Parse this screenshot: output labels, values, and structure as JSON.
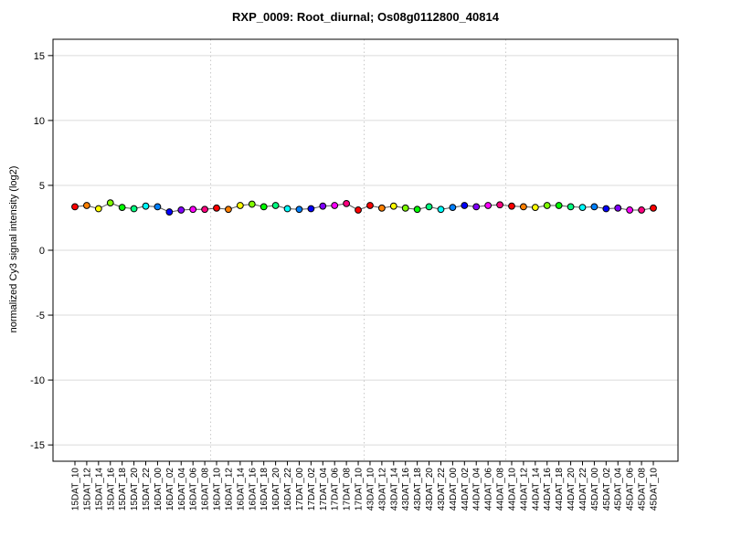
{
  "window": {
    "background": "#ffffff"
  },
  "chart_data": {
    "type": "scatter",
    "title": "RXP_0009: Root_diurnal; Os08g0112800_40814",
    "xlabel": "",
    "ylabel": "normalized Cy3 signal intensity (log2)",
    "ylim": [
      -16.3,
      16.3
    ],
    "yticks": [
      15,
      10,
      5,
      0,
      -5,
      -10,
      -15
    ],
    "grid": "horizontal light solid lines at each y tick; vertical dashed separator lines between day cycles",
    "legend": "none",
    "line_connect": true,
    "categories": [
      "15DAT_10",
      "15DAT_12",
      "15DAT_14",
      "15DAT_16",
      "15DAT_18",
      "15DAT_20",
      "15DAT_22",
      "16DAT_00",
      "16DAT_02",
      "16DAT_04",
      "16DAT_06",
      "16DAT_08",
      "16DAT_10",
      "16DAT_12",
      "16DAT_14",
      "16DAT_16",
      "16DAT_18",
      "16DAT_20",
      "16DAT_22",
      "17DAT_00",
      "17DAT_02",
      "17DAT_04",
      "17DAT_06",
      "17DAT_08",
      "17DAT_10",
      "43DAT_10",
      "43DAT_12",
      "43DAT_14",
      "43DAT_16",
      "43DAT_18",
      "43DAT_20",
      "43DAT_22",
      "44DAT_00",
      "44DAT_02",
      "44DAT_04",
      "44DAT_06",
      "44DAT_08",
      "44DAT_10",
      "44DAT_12",
      "44DAT_14",
      "44DAT_16",
      "44DAT_18",
      "44DAT_20",
      "44DAT_22",
      "45DAT_00",
      "45DAT_02",
      "45DAT_04",
      "45DAT_06",
      "45DAT_08",
      "45DAT_10"
    ],
    "values": [
      3.35,
      3.45,
      3.2,
      3.65,
      3.3,
      3.2,
      3.4,
      3.35,
      2.95,
      3.1,
      3.15,
      3.15,
      3.25,
      3.15,
      3.45,
      3.55,
      3.35,
      3.45,
      3.2,
      3.15,
      3.2,
      3.4,
      3.45,
      3.6,
      3.1,
      3.45,
      3.25,
      3.4,
      3.25,
      3.15,
      3.35,
      3.15,
      3.3,
      3.45,
      3.35,
      3.45,
      3.5,
      3.4,
      3.35,
      3.3,
      3.45,
      3.45,
      3.35,
      3.3,
      3.35,
      3.2,
      3.25,
      3.1,
      3.1,
      3.25
    ],
    "point_colors": [
      "#FF0000",
      "#FF8000",
      "#FFFF00",
      "#80FF00",
      "#00FF00",
      "#00FF80",
      "#00FFFF",
      "#0080FF",
      "#0000FF",
      "#8000FF",
      "#FF00FF",
      "#FF0080",
      "#FF0000",
      "#FF8000",
      "#FFFF00",
      "#80FF00",
      "#00FF00",
      "#00FF80",
      "#00FFFF",
      "#0080FF",
      "#0000FF",
      "#8000FF",
      "#FF00FF",
      "#FF0080",
      "#FF0000",
      "#FF0000",
      "#FF8000",
      "#FFFF00",
      "#80FF00",
      "#00FF00",
      "#00FF80",
      "#00FFFF",
      "#0080FF",
      "#0000FF",
      "#8000FF",
      "#FF00FF",
      "#FF0080",
      "#FF0000",
      "#FF8000",
      "#FFFF00",
      "#80FF00",
      "#00FF00",
      "#00FF80",
      "#00FFFF",
      "#0080FF",
      "#0000FF",
      "#8000FF",
      "#FF00FF",
      "#FF0080",
      "#FF0000"
    ],
    "separators_before_index": [
      12,
      25,
      37
    ],
    "colors": {
      "line": "#555555",
      "point_border": "#000000",
      "gridline": "#DBDBDB",
      "separator": "#C9C9C9",
      "axis": "#000000",
      "background": "#FFFFFF"
    }
  }
}
